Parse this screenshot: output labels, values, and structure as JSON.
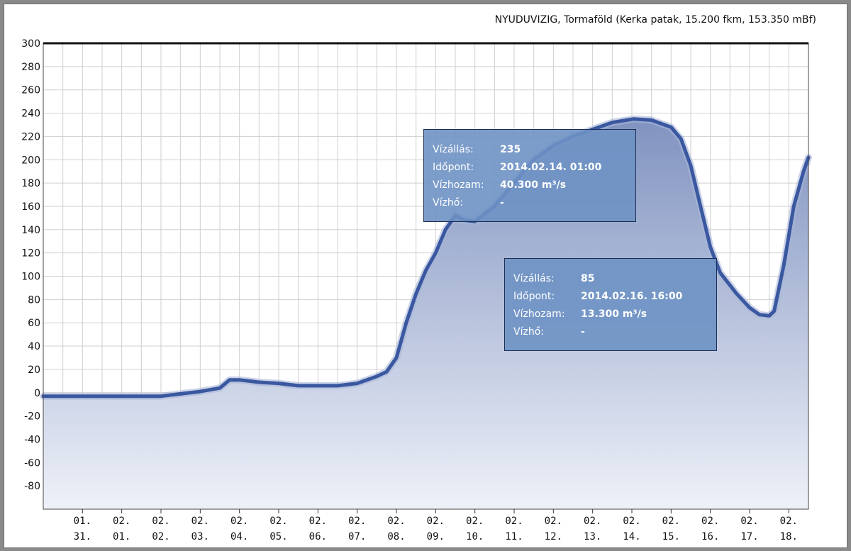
{
  "chart_data": {
    "type": "area",
    "title": "NYUDUVIZIG, Tormaföld (Kerka patak, 15.200 fkm, 153.350 mBf)",
    "xlabel": "",
    "ylabel": "",
    "ylim": [
      -100,
      300
    ],
    "yticks": [
      300,
      280,
      260,
      240,
      220,
      200,
      180,
      160,
      140,
      120,
      100,
      80,
      60,
      40,
      20,
      0,
      -20,
      -40,
      -60,
      -80
    ],
    "xlim": [
      "2014-01-30 00:00",
      "2014-02-18 12:00"
    ],
    "xtick_labels": [
      {
        "date": "2014-01-31",
        "month": "01.",
        "day": "31."
      },
      {
        "date": "2014-02-01",
        "month": "02.",
        "day": "01."
      },
      {
        "date": "2014-02-02",
        "month": "02.",
        "day": "02."
      },
      {
        "date": "2014-02-03",
        "month": "02.",
        "day": "03."
      },
      {
        "date": "2014-02-04",
        "month": "02.",
        "day": "04."
      },
      {
        "date": "2014-02-05",
        "month": "02.",
        "day": "05."
      },
      {
        "date": "2014-02-06",
        "month": "02.",
        "day": "06."
      },
      {
        "date": "2014-02-07",
        "month": "02.",
        "day": "07."
      },
      {
        "date": "2014-02-08",
        "month": "02.",
        "day": "08."
      },
      {
        "date": "2014-02-09",
        "month": "02.",
        "day": "09."
      },
      {
        "date": "2014-02-10",
        "month": "02.",
        "day": "10."
      },
      {
        "date": "2014-02-11",
        "month": "02.",
        "day": "11."
      },
      {
        "date": "2014-02-12",
        "month": "02.",
        "day": "12."
      },
      {
        "date": "2014-02-13",
        "month": "02.",
        "day": "13."
      },
      {
        "date": "2014-02-14",
        "month": "02.",
        "day": "14."
      },
      {
        "date": "2014-02-15",
        "month": "02.",
        "day": "15."
      },
      {
        "date": "2014-02-16",
        "month": "02.",
        "day": "16."
      },
      {
        "date": "2014-02-17",
        "month": "02.",
        "day": "17."
      },
      {
        "date": "2014-02-18",
        "month": "02.",
        "day": "18."
      }
    ],
    "grid": true,
    "series": [
      {
        "color": "#3a58a0",
        "fill_top": "#8093c0",
        "fill_bottom": "#eef1f8",
        "points": [
          [
            "2014-01-30 00:00",
            -3
          ],
          [
            "2014-01-31 00:00",
            -3
          ],
          [
            "2014-02-01 00:00",
            -3
          ],
          [
            "2014-02-02 00:00",
            -3
          ],
          [
            "2014-02-02 12:00",
            -1
          ],
          [
            "2014-02-03 00:00",
            1
          ],
          [
            "2014-02-03 12:00",
            4
          ],
          [
            "2014-02-03 18:00",
            11
          ],
          [
            "2014-02-04 00:00",
            11
          ],
          [
            "2014-02-04 12:00",
            9
          ],
          [
            "2014-02-05 00:00",
            8
          ],
          [
            "2014-02-05 12:00",
            6
          ],
          [
            "2014-02-06 00:00",
            6
          ],
          [
            "2014-02-06 12:00",
            6
          ],
          [
            "2014-02-07 00:00",
            8
          ],
          [
            "2014-02-07 12:00",
            14
          ],
          [
            "2014-02-07 18:00",
            18
          ],
          [
            "2014-02-08 00:00",
            30
          ],
          [
            "2014-02-08 06:00",
            60
          ],
          [
            "2014-02-08 12:00",
            85
          ],
          [
            "2014-02-08 18:00",
            105
          ],
          [
            "2014-02-09 00:00",
            120
          ],
          [
            "2014-02-09 06:00",
            140
          ],
          [
            "2014-02-09 12:00",
            152
          ],
          [
            "2014-02-09 18:00",
            148
          ],
          [
            "2014-02-10 00:00",
            147
          ],
          [
            "2014-02-10 12:00",
            160
          ],
          [
            "2014-02-11 00:00",
            180
          ],
          [
            "2014-02-11 12:00",
            200
          ],
          [
            "2014-02-12 00:00",
            212
          ],
          [
            "2014-02-12 12:00",
            220
          ],
          [
            "2014-02-13 00:00",
            226
          ],
          [
            "2014-02-13 12:00",
            232
          ],
          [
            "2014-02-14 01:00",
            235
          ],
          [
            "2014-02-14 12:00",
            234
          ],
          [
            "2014-02-15 00:00",
            228
          ],
          [
            "2014-02-15 06:00",
            218
          ],
          [
            "2014-02-15 12:00",
            195
          ],
          [
            "2014-02-15 18:00",
            160
          ],
          [
            "2014-02-16 00:00",
            125
          ],
          [
            "2014-02-16 06:00",
            103
          ],
          [
            "2014-02-16 16:00",
            85
          ],
          [
            "2014-02-17 00:00",
            73
          ],
          [
            "2014-02-17 06:00",
            67
          ],
          [
            "2014-02-17 12:00",
            66
          ],
          [
            "2014-02-17 15:00",
            70
          ],
          [
            "2014-02-17 21:00",
            110
          ],
          [
            "2014-02-18 03:00",
            160
          ],
          [
            "2014-02-18 09:00",
            190
          ],
          [
            "2014-02-18 12:00",
            202
          ]
        ]
      }
    ],
    "tooltips": [
      {
        "rows": [
          {
            "label": "Vízállás:",
            "value": "235"
          },
          {
            "label": "Időpont:",
            "value": "2014.02.14. 01:00"
          },
          {
            "label": "Vízhozam:",
            "value": "40.300 m³/s"
          },
          {
            "label": "Vízhő:",
            "value": "-"
          }
        ]
      },
      {
        "rows": [
          {
            "label": "Vízállás:",
            "value": "85"
          },
          {
            "label": "Időpont:",
            "value": "2014.02.16. 16:00"
          },
          {
            "label": "Vízhozam:",
            "value": "13.300 m³/s"
          },
          {
            "label": "Vízhő:",
            "value": "-"
          }
        ]
      }
    ]
  }
}
